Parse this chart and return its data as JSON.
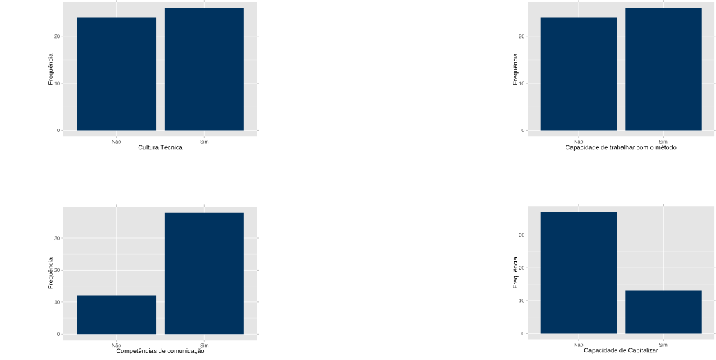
{
  "chart_data": [
    {
      "type": "bar",
      "xlabel": "Cultura Técnica",
      "ylabel": "Frequência",
      "categories": [
        "Não",
        "Sim"
      ],
      "values": [
        24,
        26
      ],
      "color": "#00335f",
      "ylim": [
        -1.3,
        27.3
      ],
      "yticks": [
        0,
        10,
        20
      ],
      "grid": true
    },
    {
      "type": "bar",
      "xlabel": "Capacidade de trabalhar com o método",
      "ylabel": "Frequência",
      "categories": [
        "Não",
        "Sim"
      ],
      "values": [
        24,
        26
      ],
      "color": "#00335f",
      "ylim": [
        -1.3,
        27.3
      ],
      "yticks": [
        0,
        10,
        20
      ],
      "grid": true
    },
    {
      "type": "bar",
      "xlabel": "Competências de comunicação",
      "ylabel": "Frequência",
      "categories": [
        "Não",
        "Sim"
      ],
      "values": [
        12,
        38
      ],
      "color": "#00335f",
      "ylim": [
        -1.9,
        39.9
      ],
      "yticks": [
        0,
        10,
        20,
        30
      ],
      "grid": true
    },
    {
      "type": "bar",
      "xlabel": "Capacidade de Capitalizar",
      "ylabel": "Frequência",
      "categories": [
        "Não",
        "Sim"
      ],
      "values": [
        37,
        13
      ],
      "color": "#00335f",
      "ylim": [
        -1.85,
        38.85
      ],
      "yticks": [
        0,
        10,
        20,
        30
      ],
      "grid": true
    }
  ]
}
